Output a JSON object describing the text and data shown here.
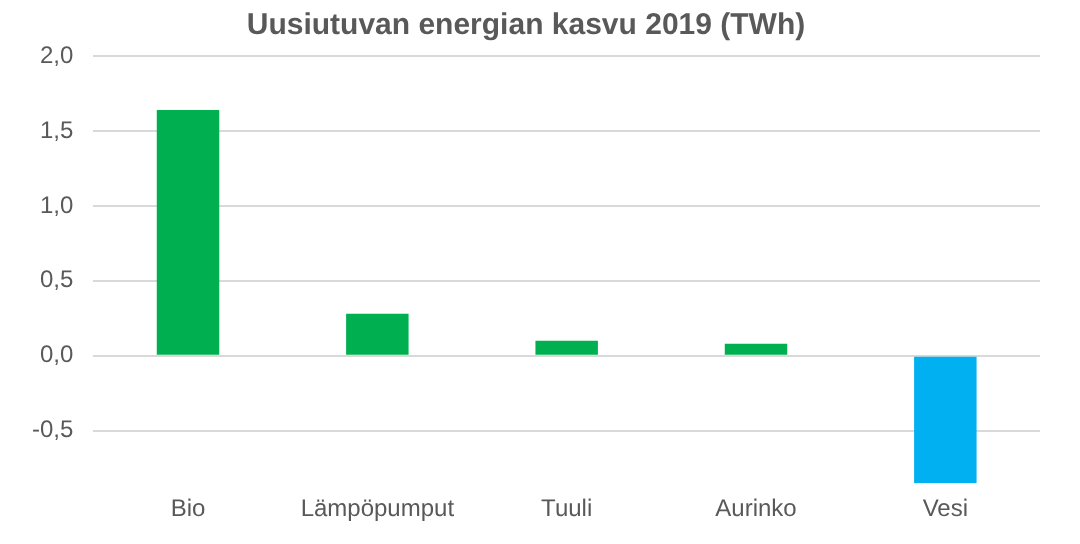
{
  "chart_data": {
    "type": "bar",
    "title": "Uusiutuvan energian kasvu 2019 (TWh)",
    "categories": [
      "Bio",
      "Lämpöpumput",
      "Tuuli",
      "Aurinko",
      "Vesi"
    ],
    "values": [
      1.64,
      0.28,
      0.1,
      0.08,
      -0.85
    ],
    "colors": [
      "#00b050",
      "#00b050",
      "#00b050",
      "#00b050",
      "#00b0f0"
    ],
    "ylim": [
      -0.85,
      2.0
    ],
    "yticks": [
      {
        "value": -0.5,
        "label": "-0,5"
      },
      {
        "value": 0,
        "label": "0,0"
      },
      {
        "value": 0.5,
        "label": "0,5"
      },
      {
        "value": 1,
        "label": "1,0"
      },
      {
        "value": 1.5,
        "label": "1,5"
      },
      {
        "value": 2,
        "label": "2,0"
      }
    ],
    "grid": "y",
    "legend": false
  }
}
